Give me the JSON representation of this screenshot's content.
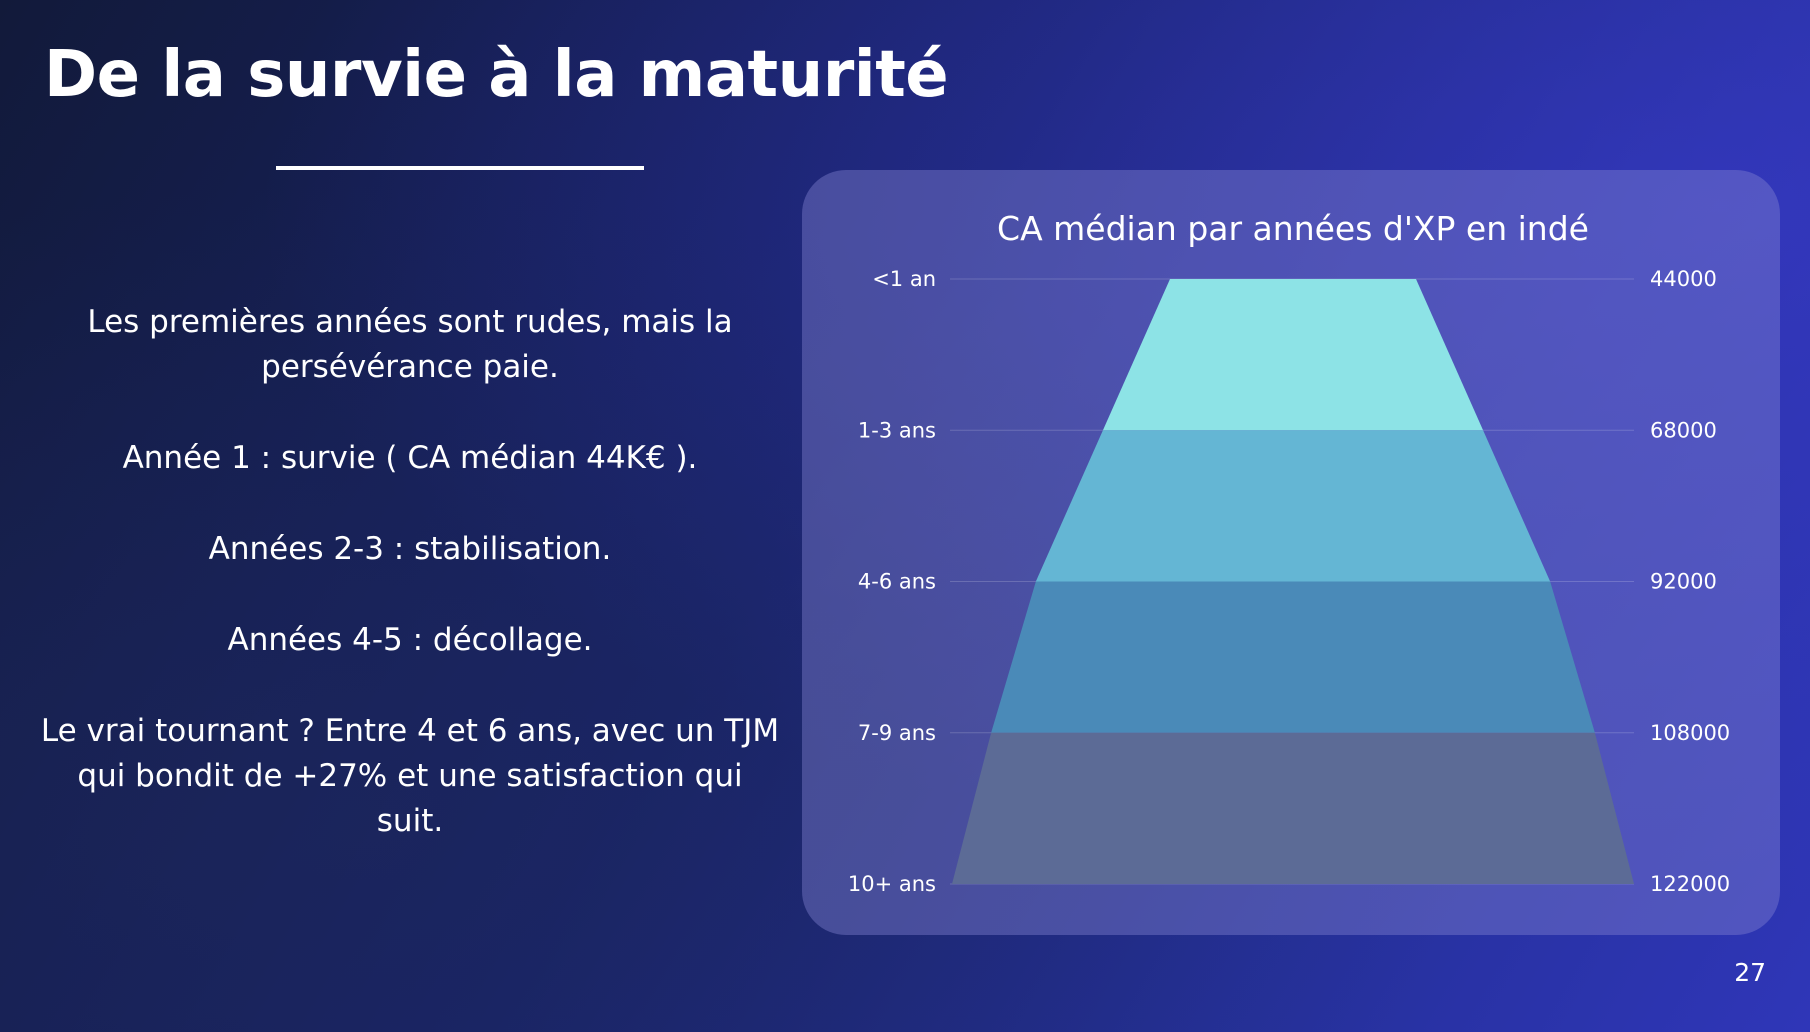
{
  "slide": {
    "title": "De la survie à la maturité",
    "page_number": "27",
    "paragraphs": [
      "Les premières années sont rudes, mais la persévérance paie.",
      "Année 1 : survie ( CA médian 44K€ ).",
      "Années 2-3 : stabilisation.",
      "Années 4-5 : décollage.",
      "Le vrai tournant  ? Entre 4 et 6 ans, avec un TJM qui bondit de +27% et une satisfaction qui suit."
    ]
  },
  "chart_data": {
    "type": "funnel",
    "title": "CA médian par années d'XP en indé",
    "categories": [
      "<1 an",
      "1-3 ans",
      "4-6 ans",
      "7-9 ans",
      "10+ ans"
    ],
    "values": [
      44000,
      68000,
      92000,
      108000,
      122000
    ],
    "value_labels": [
      "44000",
      "68000",
      "92000",
      "108000",
      "122000"
    ],
    "colors": [
      "#8de3e6",
      "#64b6d4",
      "#4a8ab8",
      "#5c6b96"
    ],
    "grid": true
  }
}
